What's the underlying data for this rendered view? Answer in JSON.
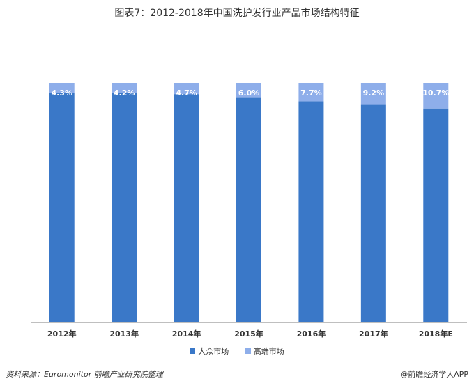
{
  "title": "图表7：2012-2018年中国洗护发行业产品市场结构特征",
  "colors": {
    "mass": "#3a78c8",
    "premium": "#8eaeea",
    "axis": "#bfbfbf"
  },
  "chart_data": {
    "type": "bar",
    "stacked": true,
    "percent_stacked": true,
    "categories": [
      "2012年",
      "2013年",
      "2014年",
      "2015年",
      "2016年",
      "2017年",
      "2018年E"
    ],
    "series": [
      {
        "name": "大众市场",
        "values": [
          95.7,
          95.8,
          95.3,
          94.0,
          92.3,
          90.8,
          89.3
        ]
      },
      {
        "name": "高端市场",
        "values": [
          4.3,
          4.2,
          4.7,
          6.0,
          7.7,
          9.2,
          10.7
        ],
        "labels": [
          "4.3%",
          "4.2%",
          "4.7%",
          "6.0%",
          "7.7%",
          "9.2%",
          "10.7%"
        ]
      }
    ],
    "ylim": [
      0,
      100
    ],
    "grid": false,
    "legend_position": "bottom"
  },
  "footer": {
    "source": "资料来源：Euromonitor 前瞻产业研究院整理",
    "brand": "@前瞻经济学人APP"
  }
}
